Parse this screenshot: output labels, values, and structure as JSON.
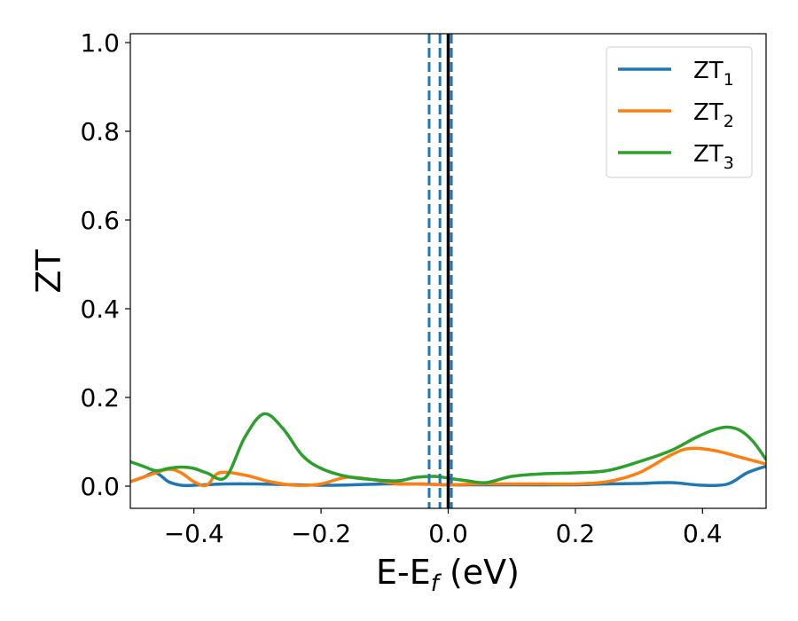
{
  "chart_data": {
    "type": "line",
    "xlabel_main": "E-E",
    "xlabel_sub": "f",
    "xlabel_tail": " (eV)",
    "ylabel": "ZT",
    "xlim": [
      -0.5,
      0.5
    ],
    "ylim": [
      -0.05,
      1.02
    ],
    "xticks": [
      -0.4,
      -0.2,
      0.0,
      0.2,
      0.4
    ],
    "xtick_labels": [
      "−0.4",
      "−0.2",
      "0.0",
      "0.2",
      "0.4"
    ],
    "yticks": [
      0.0,
      0.2,
      0.4,
      0.6,
      0.8,
      1.0
    ],
    "ytick_labels": [
      "0.0",
      "0.2",
      "0.4",
      "0.6",
      "0.8",
      "1.0"
    ],
    "grid": false,
    "legend_position": "top-right",
    "vlines": [
      {
        "x": -0.03,
        "style": "dashed",
        "color": "#1f77b4"
      },
      {
        "x": -0.013,
        "style": "dashed",
        "color": "#1f77b4"
      },
      {
        "x": 0.005,
        "style": "dashed",
        "color": "#1f77b4"
      },
      {
        "x": 0.0,
        "style": "solid",
        "color": "#000000"
      }
    ],
    "series": [
      {
        "name_main": "ZT",
        "name_sub": "1",
        "color": "#1f77b4",
        "x": [
          -0.5,
          -0.48,
          -0.46,
          -0.44,
          -0.42,
          -0.4,
          -0.35,
          -0.3,
          -0.2,
          -0.15,
          -0.1,
          -0.05,
          0.0,
          0.05,
          0.1,
          0.2,
          0.25,
          0.3,
          0.35,
          0.4,
          0.44,
          0.47,
          0.5
        ],
        "y": [
          0.01,
          0.02,
          0.03,
          0.01,
          0.002,
          0.002,
          0.005,
          0.005,
          0.002,
          0.003,
          0.005,
          0.005,
          0.003,
          0.003,
          0.003,
          0.003,
          0.005,
          0.006,
          0.008,
          0.002,
          0.005,
          0.03,
          0.045
        ]
      },
      {
        "name_main": "ZT",
        "name_sub": "2",
        "color": "#ff7f0e",
        "x": [
          -0.5,
          -0.47,
          -0.44,
          -0.42,
          -0.4,
          -0.38,
          -0.36,
          -0.32,
          -0.28,
          -0.24,
          -0.2,
          -0.16,
          -0.12,
          -0.08,
          -0.04,
          0.0,
          0.05,
          0.1,
          0.15,
          0.2,
          0.25,
          0.3,
          0.35,
          0.38,
          0.42,
          0.46,
          0.5
        ],
        "y": [
          0.01,
          0.025,
          0.038,
          0.03,
          0.01,
          0.002,
          0.03,
          0.025,
          0.01,
          0.002,
          0.005,
          0.02,
          0.015,
          0.005,
          0.005,
          0.003,
          0.005,
          0.005,
          0.005,
          0.005,
          0.01,
          0.03,
          0.07,
          0.085,
          0.08,
          0.065,
          0.05
        ]
      },
      {
        "name_main": "ZT",
        "name_sub": "3",
        "color": "#2ca02c",
        "x": [
          -0.5,
          -0.48,
          -0.46,
          -0.44,
          -0.42,
          -0.4,
          -0.38,
          -0.35,
          -0.32,
          -0.29,
          -0.26,
          -0.23,
          -0.2,
          -0.16,
          -0.12,
          -0.08,
          -0.05,
          -0.02,
          0.0,
          0.03,
          0.06,
          0.1,
          0.15,
          0.2,
          0.25,
          0.3,
          0.35,
          0.39,
          0.42,
          0.44,
          0.46,
          0.48,
          0.5
        ],
        "y": [
          0.055,
          0.045,
          0.035,
          0.04,
          0.043,
          0.04,
          0.03,
          0.02,
          0.11,
          0.163,
          0.13,
          0.07,
          0.04,
          0.022,
          0.015,
          0.012,
          0.02,
          0.022,
          0.018,
          0.012,
          0.008,
          0.022,
          0.028,
          0.03,
          0.035,
          0.055,
          0.08,
          0.11,
          0.128,
          0.133,
          0.125,
          0.1,
          0.06
        ]
      }
    ]
  }
}
